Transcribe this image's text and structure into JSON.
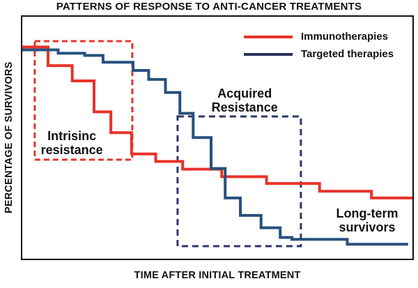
{
  "figure": {
    "title": "PATTERNS OF RESPONSE TO ANTI-CANCER TREATMENTS",
    "x_axis_label": "TIME AFTER INITIAL TREATMENT",
    "y_axis_label": "PERCENTAGE OF SURVIVORS"
  },
  "legend": {
    "items": [
      {
        "label": "Immunotherapies",
        "color": "#e8332a"
      },
      {
        "label": "Targeted therapies",
        "color": "#2b3158"
      }
    ]
  },
  "colors": {
    "immunotherapies_curve": "#e8332a",
    "targeted_therapies_curve": "#27517e",
    "intrinsic_box": "#e8332a",
    "acquired_box": "#2c3668",
    "text": "#111111",
    "plot_border": "#111111"
  },
  "chart_data": {
    "type": "line",
    "subtype": "kaplan-meier-step-survival",
    "title": "PATTERNS OF RESPONSE TO ANTI-CANCER TREATMENTS",
    "xlabel": "TIME AFTER INITIAL TREATMENT",
    "ylabel": "PERCENTAGE OF SURVIVORS",
    "x_range": [
      0,
      100
    ],
    "ylim": [
      0,
      100
    ],
    "grid": false,
    "axis_ticks": "none (qualitative axes)",
    "legend_position": "top-right-inside",
    "units_note": "x = % of time axis (unlabeled), y = estimated % of survivors read from plot geometry",
    "series": [
      {
        "name": "Immunotherapies",
        "color": "#e8332a",
        "points": [
          [
            0,
            87.5
          ],
          [
            6.6,
            87.5
          ],
          [
            6.6,
            79.8
          ],
          [
            12.8,
            79.8
          ],
          [
            12.8,
            73.5
          ],
          [
            18.4,
            73.5
          ],
          [
            18.4,
            60.7
          ],
          [
            22.7,
            60.7
          ],
          [
            22.7,
            52.1
          ],
          [
            28.0,
            52.1
          ],
          [
            28.0,
            43.3
          ],
          [
            34.2,
            43.3
          ],
          [
            34.2,
            40.2
          ],
          [
            41.1,
            40.2
          ],
          [
            41.1,
            37.0
          ],
          [
            51.1,
            37.0
          ],
          [
            51.1,
            33.9
          ],
          [
            62.6,
            33.9
          ],
          [
            62.6,
            31.1
          ],
          [
            76.2,
            31.1
          ],
          [
            76.2,
            27.9
          ],
          [
            89.5,
            27.9
          ],
          [
            89.5,
            25.1
          ],
          [
            100,
            25.1
          ]
        ]
      },
      {
        "name": "Targeted therapies",
        "color": "#27517e",
        "points": [
          [
            0,
            86.3
          ],
          [
            9.2,
            86.3
          ],
          [
            9.2,
            84.9
          ],
          [
            16.0,
            84.9
          ],
          [
            16.0,
            84.0
          ],
          [
            20.7,
            84.0
          ],
          [
            20.7,
            81.2
          ],
          [
            28.4,
            81.2
          ],
          [
            28.4,
            77.8
          ],
          [
            32.4,
            77.8
          ],
          [
            32.4,
            74.1
          ],
          [
            36.7,
            74.1
          ],
          [
            36.7,
            68.7
          ],
          [
            40.4,
            68.7
          ],
          [
            40.4,
            60.1
          ],
          [
            43.8,
            60.1
          ],
          [
            43.8,
            50.1
          ],
          [
            48.4,
            50.1
          ],
          [
            48.4,
            37.3
          ],
          [
            52.0,
            37.3
          ],
          [
            52.0,
            25.1
          ],
          [
            55.9,
            25.1
          ],
          [
            55.9,
            17.9
          ],
          [
            61.2,
            17.9
          ],
          [
            61.2,
            12.8
          ],
          [
            66.1,
            12.8
          ],
          [
            66.1,
            8.8
          ],
          [
            69.1,
            8.8
          ],
          [
            69.1,
            8.0
          ],
          [
            83.3,
            8.0
          ],
          [
            83.3,
            6.0
          ],
          [
            98.9,
            6.0
          ]
        ]
      }
    ],
    "annotations": [
      {
        "id": "intrinsic-resistance",
        "style": "dashed-box",
        "lines": [
          "Intrisinc",
          "resistance"
        ],
        "color": "#e8332a",
        "dash": "8 5",
        "box": {
          "x0": 3.2,
          "x1": 28.2,
          "y0": 40.9,
          "y1": 89.9
        },
        "label_pos": {
          "x": 12.7,
          "y": 47.8
        }
      },
      {
        "id": "acquired-resistance",
        "style": "dashed-box",
        "lines": [
          "Acquired",
          "Resistance"
        ],
        "color": "#2c3668",
        "dash": "9 6",
        "box": {
          "x0": 39.8,
          "x1": 71.4,
          "y0": 5.2,
          "y1": 58.8
        },
        "label_pos": {
          "x": 57.0,
          "y": 65.4
        }
      },
      {
        "id": "long-term-survivors",
        "style": "text",
        "lines": [
          "Long-term",
          "survivors"
        ],
        "color": "#111111",
        "label_pos": {
          "x": 88.4,
          "y": 15.9
        }
      }
    ]
  }
}
